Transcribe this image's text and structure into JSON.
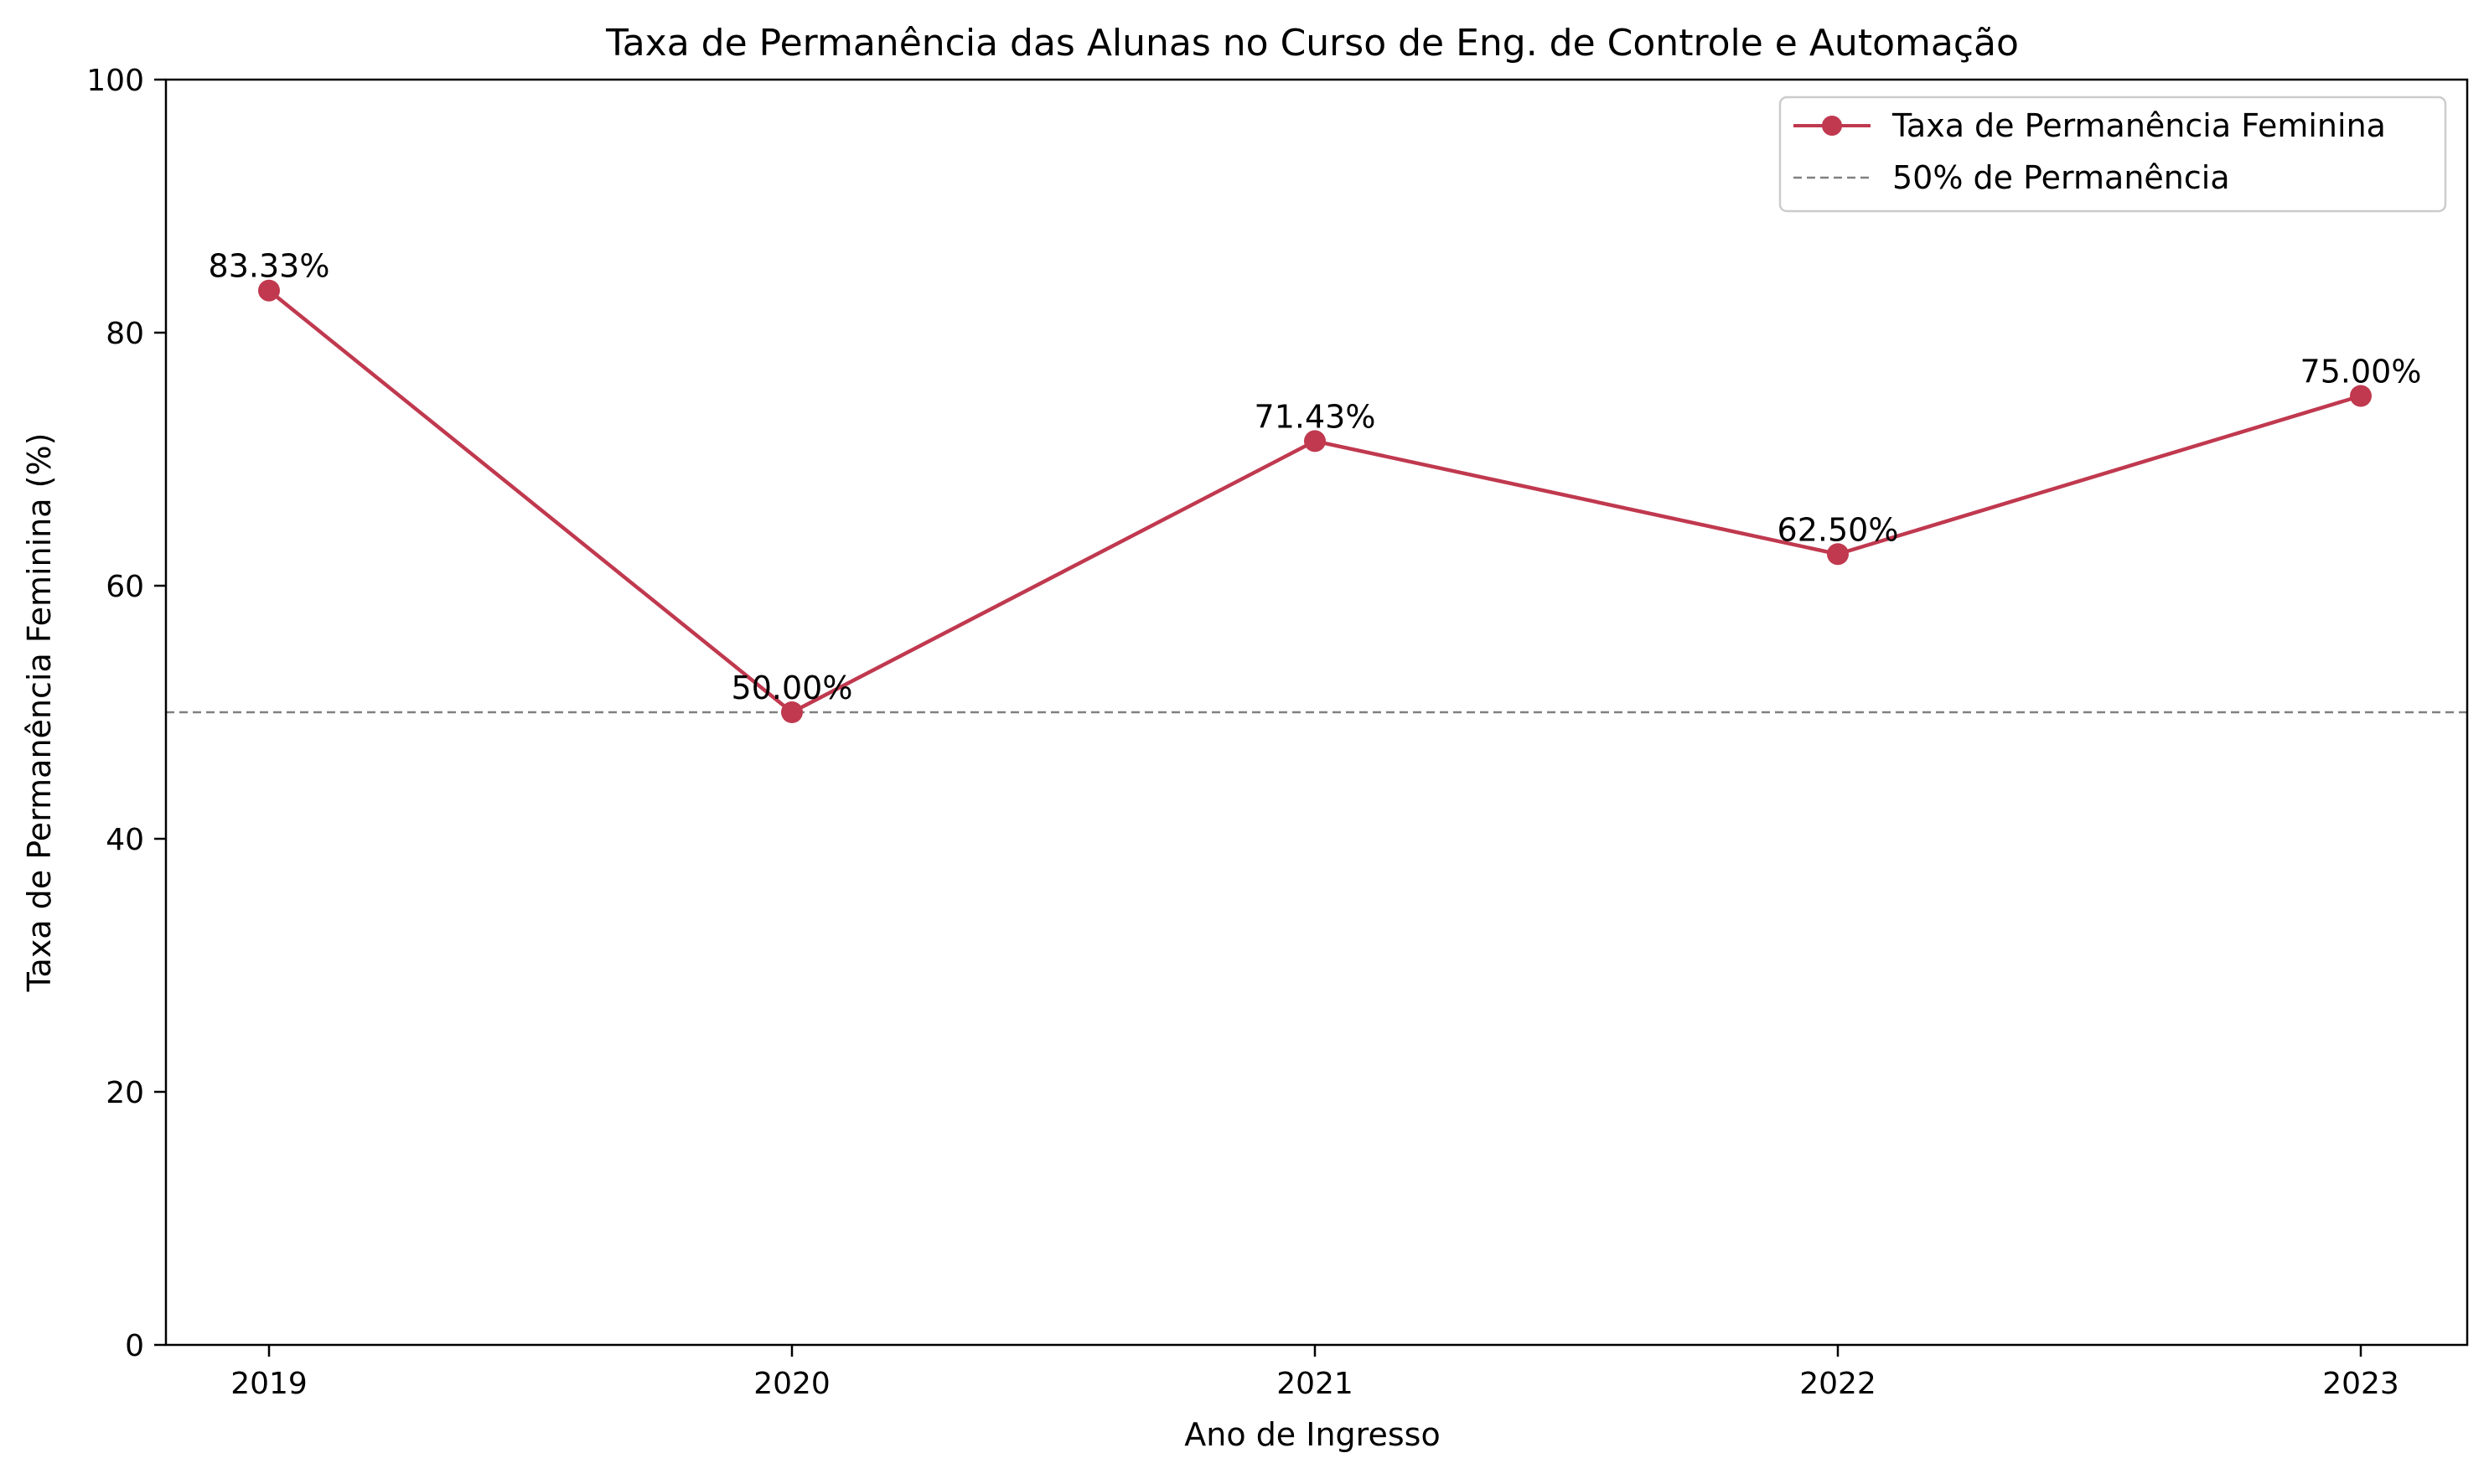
{
  "chart_data": {
    "type": "line",
    "title": "Taxa de Permanência das Alunas no Curso de Eng. de Controle e Automação",
    "xlabel": "Ano de Ingresso",
    "ylabel": "Taxa de Permanência Feminina (%)",
    "categories": [
      "2019",
      "2020",
      "2021",
      "2022",
      "2023"
    ],
    "ylim": [
      0,
      100
    ],
    "yticks": [
      0,
      20,
      40,
      60,
      80,
      100
    ],
    "series": [
      {
        "name": "Taxa de Permanência Feminina",
        "values": [
          83.33,
          50.0,
          71.43,
          62.5,
          75.0
        ],
        "labels": [
          "83.33%",
          "50.00%",
          "71.43%",
          "62.50%",
          "75.00%"
        ],
        "color": "#c0394f",
        "marker": "circle"
      }
    ],
    "reference_line": {
      "name": "50% de Permanência",
      "value": 50,
      "color": "#808080",
      "style": "dashed"
    },
    "grid": false,
    "legend_position": "top-right"
  }
}
